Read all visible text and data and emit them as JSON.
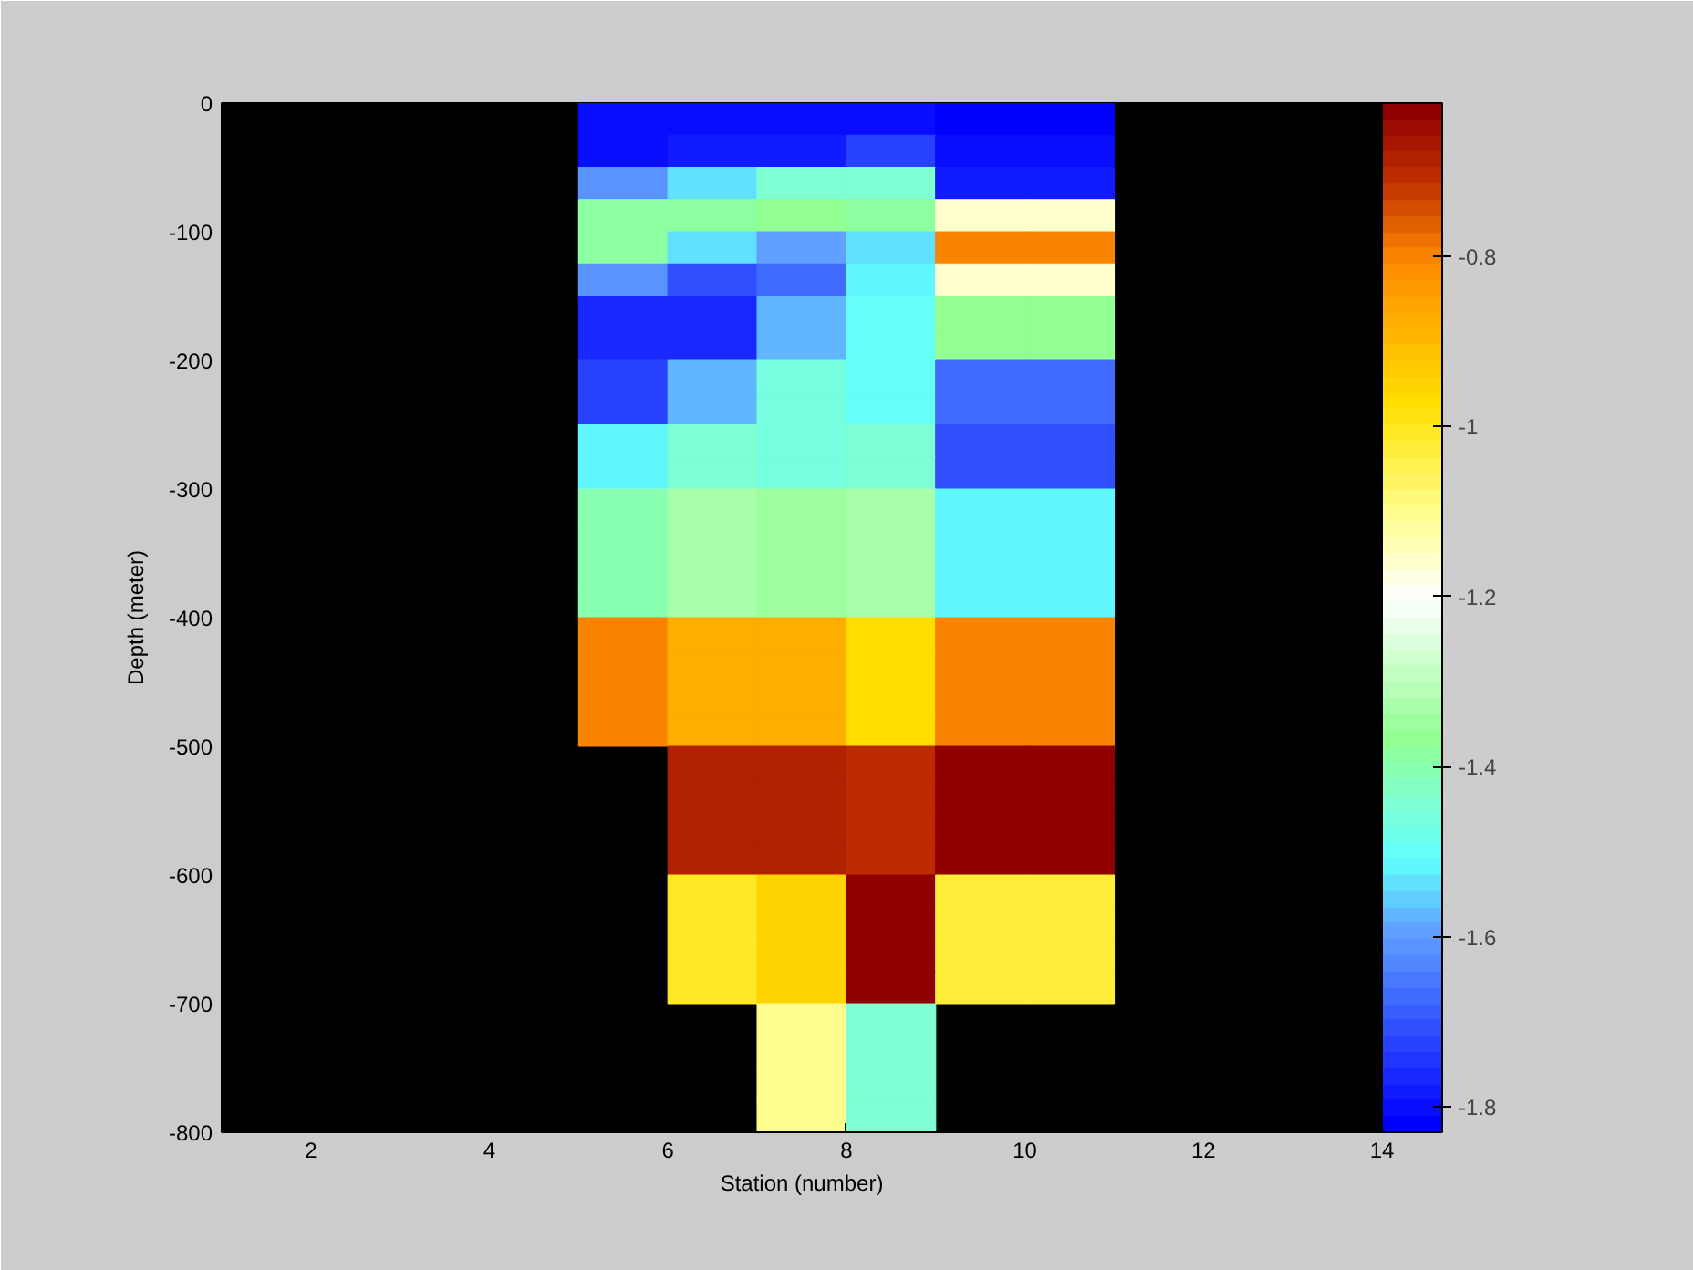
{
  "chart_data": {
    "type": "heatmap",
    "xlabel": "Station (number)",
    "ylabel": "Depth (meter)",
    "x": [
      1.5,
      2.5,
      3.5,
      4.5,
      5.5,
      6.5,
      7.5,
      8.5,
      9.5,
      10.5,
      11.5,
      12.5,
      13.5
    ],
    "xlim": [
      1,
      14
    ],
    "xticks": [
      2,
      4,
      6,
      8,
      10,
      12,
      14
    ],
    "ylim": [
      -800,
      0
    ],
    "yticks": [
      -800,
      -700,
      -600,
      -500,
      -400,
      -300,
      -200,
      -100,
      0
    ],
    "clim": [
      -1.83,
      -0.62
    ],
    "cticks": [
      -1.8,
      -1.6,
      -1.4,
      -1.2,
      -1,
      -0.8
    ],
    "grid": false,
    "cells": [
      [
        null,
        null,
        null,
        null,
        -1.8,
        -1.8,
        -1.8,
        -1.8,
        -1.82,
        -1.82,
        null,
        null,
        null
      ],
      [
        null,
        null,
        null,
        null,
        -1.8,
        -1.78,
        -1.78,
        -1.73,
        -1.8,
        -1.8,
        null,
        null,
        null
      ],
      [
        null,
        null,
        null,
        null,
        -1.61,
        -1.53,
        -1.45,
        -1.45,
        -1.78,
        -1.78,
        null,
        null,
        null
      ],
      [
        null,
        null,
        null,
        null,
        -1.39,
        -1.39,
        -1.37,
        -1.39,
        -1.15,
        -1.15,
        null,
        null,
        null
      ],
      [
        null,
        null,
        null,
        null,
        -1.39,
        -1.53,
        -1.59,
        -1.53,
        -0.8,
        -0.8,
        null,
        null,
        null
      ],
      [
        null,
        null,
        null,
        null,
        -1.61,
        -1.7,
        -1.66,
        -1.52,
        -1.15,
        -1.15,
        null,
        null,
        null
      ],
      [
        null,
        null,
        null,
        null,
        -1.76,
        -1.76,
        -1.57,
        -1.49,
        -1.37,
        -1.37,
        null,
        null,
        null
      ],
      [
        null,
        null,
        null,
        null,
        -1.76,
        -1.76,
        -1.57,
        -1.49,
        -1.37,
        -1.37,
        null,
        null,
        null
      ],
      [
        null,
        null,
        null,
        null,
        -1.72,
        -1.57,
        -1.47,
        -1.49,
        -1.66,
        -1.66,
        null,
        null,
        null
      ],
      [
        null,
        null,
        null,
        null,
        -1.72,
        -1.57,
        -1.47,
        -1.49,
        -1.66,
        -1.66,
        null,
        null,
        null
      ],
      [
        null,
        null,
        null,
        null,
        -1.52,
        -1.45,
        -1.47,
        -1.44,
        -1.7,
        -1.7,
        null,
        null,
        null
      ],
      [
        null,
        null,
        null,
        null,
        -1.52,
        -1.45,
        -1.47,
        -1.44,
        -1.7,
        -1.7,
        null,
        null,
        null
      ],
      [
        null,
        null,
        null,
        null,
        -1.41,
        -1.32,
        -1.34,
        -1.32,
        -1.52,
        -1.52,
        null,
        null,
        null
      ],
      [
        null,
        null,
        null,
        null,
        -1.41,
        -1.32,
        -1.34,
        -1.32,
        -1.52,
        -1.52,
        null,
        null,
        null
      ],
      [
        null,
        null,
        null,
        null,
        -1.41,
        -1.32,
        -1.34,
        -1.32,
        -1.52,
        -1.52,
        null,
        null,
        null
      ],
      [
        null,
        null,
        null,
        null,
        -1.41,
        -1.32,
        -1.34,
        -1.32,
        -1.52,
        -1.52,
        null,
        null,
        null
      ],
      [
        null,
        null,
        null,
        null,
        -0.8,
        -0.87,
        -0.87,
        -0.97,
        -0.8,
        -0.8,
        null,
        null,
        null
      ],
      [
        null,
        null,
        null,
        null,
        -0.8,
        -0.87,
        -0.87,
        -0.97,
        -0.8,
        -0.8,
        null,
        null,
        null
      ],
      [
        null,
        null,
        null,
        null,
        -0.8,
        -0.87,
        -0.87,
        -0.97,
        -0.8,
        -0.8,
        null,
        null,
        null
      ],
      [
        null,
        null,
        null,
        null,
        -0.8,
        -0.87,
        -0.87,
        -0.97,
        -0.8,
        -0.8,
        null,
        null,
        null
      ],
      [
        null,
        null,
        null,
        null,
        null,
        -0.69,
        -0.69,
        -0.71,
        -0.63,
        -0.63,
        null,
        null,
        null
      ],
      [
        null,
        null,
        null,
        null,
        null,
        -0.69,
        -0.69,
        -0.71,
        -0.63,
        -0.63,
        null,
        null,
        null
      ],
      [
        null,
        null,
        null,
        null,
        null,
        -0.69,
        -0.69,
        -0.71,
        -0.63,
        -0.63,
        null,
        null,
        null
      ],
      [
        null,
        null,
        null,
        null,
        null,
        -0.69,
        -0.69,
        -0.71,
        -0.63,
        -0.63,
        null,
        null,
        null
      ],
      [
        null,
        null,
        null,
        null,
        null,
        -1.01,
        -0.96,
        -0.63,
        -1.03,
        -1.03,
        null,
        null,
        null
      ],
      [
        null,
        null,
        null,
        null,
        null,
        -1.01,
        -0.96,
        -0.63,
        -1.03,
        -1.03,
        null,
        null,
        null
      ],
      [
        null,
        null,
        null,
        null,
        null,
        -1.01,
        -0.96,
        -0.63,
        -1.03,
        -1.03,
        null,
        null,
        null
      ],
      [
        null,
        null,
        null,
        null,
        null,
        -1.01,
        -0.96,
        -0.63,
        -1.03,
        -1.03,
        null,
        null,
        null
      ],
      [
        null,
        null,
        null,
        null,
        null,
        null,
        -1.1,
        -1.44,
        null,
        null,
        null,
        null,
        null
      ],
      [
        null,
        null,
        null,
        null,
        null,
        null,
        -1.1,
        -1.44,
        null,
        null,
        null,
        null,
        null
      ],
      [
        null,
        null,
        null,
        null,
        null,
        null,
        -1.1,
        -1.44,
        null,
        null,
        null,
        null,
        null
      ],
      [
        null,
        null,
        null,
        null,
        null,
        null,
        -1.1,
        -1.44,
        null,
        null,
        null,
        null,
        null
      ]
    ]
  }
}
